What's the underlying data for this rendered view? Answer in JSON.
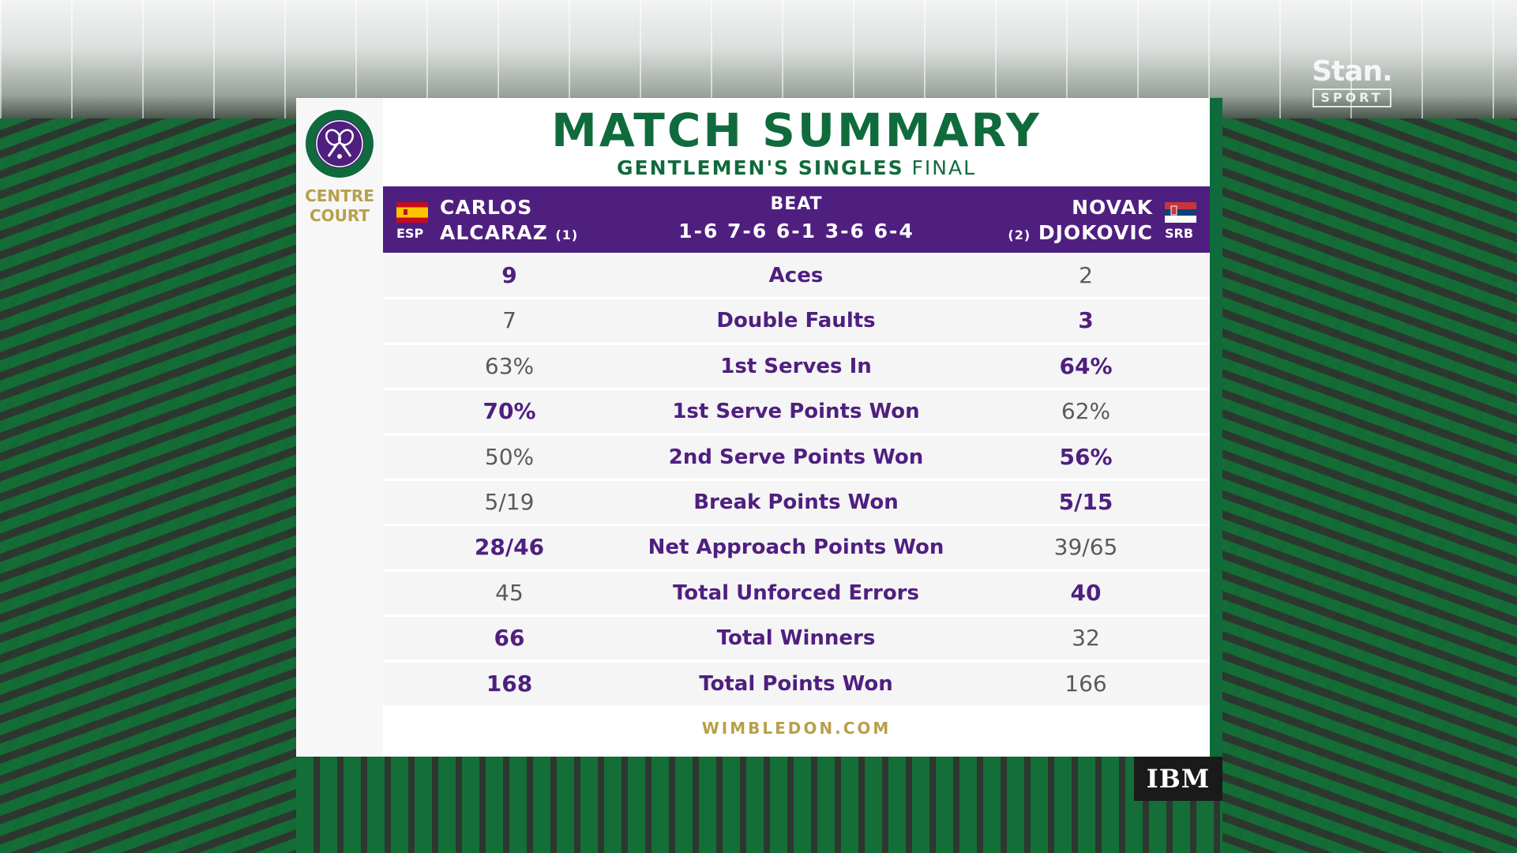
{
  "broadcaster": {
    "name": "Stan.",
    "sub": "SPORT"
  },
  "venue": {
    "line1": "CENTRE",
    "line2": "COURT"
  },
  "title": "MATCH SUMMARY",
  "subtitle": {
    "event": "GENTLEMEN'S SINGLES",
    "round": "FINAL"
  },
  "player1": {
    "code": "ESP",
    "first": "CARLOS",
    "last": "ALCARAZ",
    "seed": "(1)"
  },
  "player2": {
    "code": "SRB",
    "first": "NOVAK",
    "last": "DJOKOVIC",
    "seed": "(2)"
  },
  "result": {
    "verb": "BEAT",
    "score": "1-6 7-6 6-1 3-6 6-4"
  },
  "stats": [
    {
      "label": "Aces",
      "p1": "9",
      "p2": "2",
      "leader": "p1"
    },
    {
      "label": "Double Faults",
      "p1": "7",
      "p2": "3",
      "leader": "p2"
    },
    {
      "label": "1st Serves In",
      "p1": "63%",
      "p2": "64%",
      "leader": "p2"
    },
    {
      "label": "1st Serve Points Won",
      "p1": "70%",
      "p2": "62%",
      "leader": "p1"
    },
    {
      "label": "2nd Serve Points Won",
      "p1": "50%",
      "p2": "56%",
      "leader": "p2"
    },
    {
      "label": "Break Points Won",
      "p1": "5/19",
      "p2": "5/15",
      "leader": "p2"
    },
    {
      "label": "Net Approach Points Won",
      "p1": "28/46",
      "p2": "39/65",
      "leader": "p1"
    },
    {
      "label": "Total Unforced Errors",
      "p1": "45",
      "p2": "40",
      "leader": "p2"
    },
    {
      "label": "Total Winners",
      "p1": "66",
      "p2": "32",
      "leader": "p1"
    },
    {
      "label": "Total Points Won",
      "p1": "168",
      "p2": "166",
      "leader": "p1"
    }
  ],
  "footer": "WIMBLEDON.COM",
  "sponsor": "IBM",
  "colors": {
    "purple": "#4f1f80",
    "green": "#0f6b3c",
    "gold": "#b8a04a"
  },
  "icons": {
    "logo": "wimbledon-logo-icon",
    "flag1": "spain-flag-icon",
    "flag2": "serbia-flag-icon"
  }
}
